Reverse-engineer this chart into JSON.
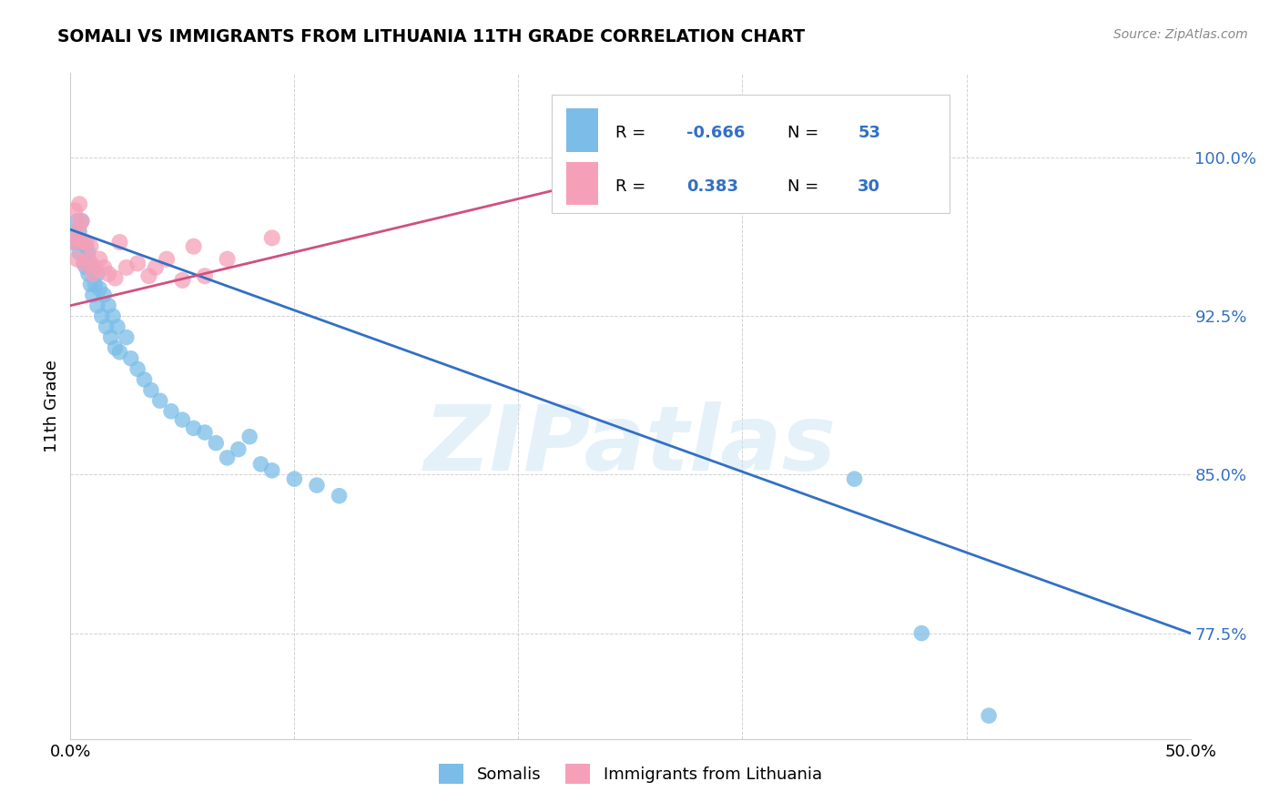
{
  "title": "SOMALI VS IMMIGRANTS FROM LITHUANIA 11TH GRADE CORRELATION CHART",
  "source": "Source: ZipAtlas.com",
  "ylabel": "11th Grade",
  "ytick_labels": [
    "77.5%",
    "85.0%",
    "92.5%",
    "100.0%"
  ],
  "ytick_values": [
    0.775,
    0.85,
    0.925,
    1.0
  ],
  "xtick_positions": [
    0.0,
    0.1,
    0.2,
    0.3,
    0.4,
    0.5
  ],
  "xtick_labels": [
    "0.0%",
    "",
    "",
    "",
    "",
    "50.0%"
  ],
  "xlim": [
    0.0,
    0.5
  ],
  "ylim": [
    0.725,
    1.04
  ],
  "watermark": "ZIPatlas",
  "legend_r_blue": "-0.666",
  "legend_n_blue": "53",
  "legend_r_pink": "0.383",
  "legend_n_pink": "30",
  "blue_color": "#7bbde8",
  "blue_line_color": "#3370c4",
  "pink_color": "#f5a0b8",
  "pink_line_color": "#d05080",
  "somali_x": [
    0.001,
    0.002,
    0.003,
    0.003,
    0.004,
    0.004,
    0.005,
    0.005,
    0.006,
    0.006,
    0.007,
    0.007,
    0.008,
    0.008,
    0.009,
    0.009,
    0.01,
    0.01,
    0.011,
    0.012,
    0.012,
    0.013,
    0.014,
    0.015,
    0.016,
    0.017,
    0.018,
    0.019,
    0.02,
    0.021,
    0.022,
    0.025,
    0.027,
    0.03,
    0.033,
    0.036,
    0.04,
    0.045,
    0.05,
    0.055,
    0.06,
    0.065,
    0.07,
    0.075,
    0.08,
    0.085,
    0.09,
    0.1,
    0.11,
    0.12,
    0.35,
    0.38,
    0.41
  ],
  "somali_y": [
    0.96,
    0.965,
    0.96,
    0.97,
    0.955,
    0.965,
    0.96,
    0.97,
    0.95,
    0.96,
    0.948,
    0.958,
    0.945,
    0.955,
    0.94,
    0.95,
    0.935,
    0.948,
    0.94,
    0.93,
    0.945,
    0.938,
    0.925,
    0.935,
    0.92,
    0.93,
    0.915,
    0.925,
    0.91,
    0.92,
    0.908,
    0.915,
    0.905,
    0.9,
    0.895,
    0.89,
    0.885,
    0.88,
    0.876,
    0.872,
    0.87,
    0.865,
    0.858,
    0.862,
    0.868,
    0.855,
    0.852,
    0.848,
    0.845,
    0.84,
    0.848,
    0.775,
    0.736
  ],
  "lithuania_x": [
    0.001,
    0.002,
    0.003,
    0.003,
    0.004,
    0.004,
    0.005,
    0.005,
    0.006,
    0.007,
    0.008,
    0.009,
    0.01,
    0.011,
    0.013,
    0.015,
    0.017,
    0.02,
    0.022,
    0.025,
    0.03,
    0.035,
    0.038,
    0.043,
    0.05,
    0.055,
    0.06,
    0.07,
    0.09,
    0.28
  ],
  "lithuania_y": [
    0.96,
    0.975,
    0.952,
    0.962,
    0.968,
    0.978,
    0.96,
    0.97,
    0.95,
    0.96,
    0.952,
    0.958,
    0.945,
    0.948,
    0.952,
    0.948,
    0.945,
    0.943,
    0.96,
    0.948,
    0.95,
    0.944,
    0.948,
    0.952,
    0.942,
    0.958,
    0.944,
    0.952,
    0.962,
    1.0
  ],
  "blue_trendline_x": [
    0.0,
    0.5
  ],
  "blue_trendline_y": [
    0.966,
    0.775
  ],
  "pink_trendline_x": [
    0.0,
    0.285
  ],
  "pink_trendline_y": [
    0.93,
    1.002
  ]
}
